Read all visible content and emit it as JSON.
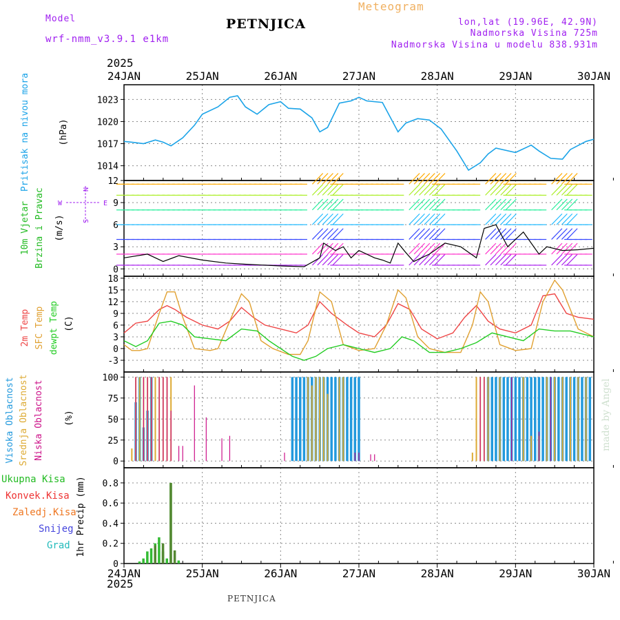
{
  "header": {
    "model_label": "Model",
    "model_name": "wrf-nmm_v3.9.1 e1km",
    "station": "PETNJICA",
    "product": "Meteogram",
    "lonlat": "lon,lat (19.96E, 42.9N)",
    "elevation": "Nadmorska Visina 725m",
    "model_elevation": "Nadmorska Visina u modelu 838.931m",
    "year_top": "2025",
    "year_bottom": "2025",
    "footer_station": "PETNJICA",
    "made_by": "made by Angel"
  },
  "colors": {
    "pressure": "#1aa3e8",
    "wind_label": "#22bb22",
    "temp2m": "#ee4444",
    "sfc": "#e0a030",
    "dewpt": "#22cc22",
    "cloud_high": "#2299dd",
    "cloud_mid": "#ddaa33",
    "cloud_low": "#cc1188",
    "purple": "#a020f0"
  },
  "chart_data": [
    {
      "type": "line",
      "panel": "pressure",
      "ylabel_1": "Pritisak na nivou mora",
      "ylabel_2": "(hPa)",
      "ylim": [
        1012,
        1025
      ],
      "yticks": [
        1014,
        1017,
        1020,
        1023
      ],
      "x_days": [
        "24JAN",
        "25JAN",
        "26JAN",
        "27JAN",
        "28JAN",
        "29JAN",
        "30JAN"
      ],
      "series": [
        {
          "x": [
            0,
            0.1,
            0.25,
            0.4,
            0.5,
            0.6,
            0.75,
            0.9,
            1.0,
            1.2,
            1.35,
            1.45,
            1.55,
            1.7,
            1.85,
            2.0,
            2.1,
            2.25,
            2.4,
            2.5,
            2.6,
            2.75,
            2.9,
            3.0,
            3.1,
            3.3,
            3.5,
            3.6,
            3.75,
            3.9,
            4.05,
            4.25,
            4.4,
            4.55,
            4.65,
            4.75,
            5.0,
            5.2,
            5.3,
            5.45,
            5.6,
            5.7,
            5.9,
            6.0
          ],
          "y": [
            1017.3,
            1017.2,
            1017.0,
            1017.5,
            1017.2,
            1016.7,
            1017.8,
            1019.5,
            1021.0,
            1022.0,
            1023.3,
            1023.5,
            1022.0,
            1021.0,
            1022.3,
            1022.7,
            1021.8,
            1021.7,
            1020.5,
            1018.6,
            1019.2,
            1022.5,
            1022.8,
            1023.3,
            1022.8,
            1022.6,
            1018.6,
            1019.8,
            1020.4,
            1020.2,
            1019.0,
            1016.0,
            1013.4,
            1014.4,
            1015.6,
            1016.4,
            1015.8,
            1016.8,
            1016.0,
            1015.0,
            1014.9,
            1016.2,
            1017.3,
            1017.6
          ]
        }
      ]
    },
    {
      "type": "line",
      "panel": "wind",
      "ylabel_1": "10m Vjetar",
      "ylabel_2": "Brzina i Pravac",
      "ylabel_3": "(m/s)",
      "compass": {
        "n": "N",
        "s": "S",
        "w": "W",
        "e": "E"
      },
      "ylim": [
        -1,
        12
      ],
      "yticks": [
        0,
        3,
        6,
        9,
        12
      ],
      "series": [
        {
          "name": "speed",
          "x": [
            0,
            0.3,
            0.5,
            0.7,
            1.0,
            1.3,
            1.6,
            2.0,
            2.3,
            2.5,
            2.55,
            2.7,
            2.8,
            2.9,
            3.0,
            3.2,
            3.3,
            3.4,
            3.5,
            3.6,
            3.7,
            3.9,
            4.1,
            4.3,
            4.5,
            4.6,
            4.75,
            4.9,
            5.1,
            5.3,
            5.4,
            5.6,
            5.8,
            6.0
          ],
          "y": [
            1.5,
            2.0,
            1.0,
            1.8,
            1.2,
            0.8,
            0.6,
            0.4,
            0.3,
            1.5,
            3.5,
            2.5,
            3.0,
            1.5,
            2.5,
            1.5,
            1.2,
            0.8,
            3.5,
            2.2,
            1.0,
            2.0,
            3.5,
            3.0,
            1.5,
            5.5,
            6.0,
            3.0,
            5.0,
            2.0,
            3.0,
            2.5,
            2.6,
            2.8
          ]
        }
      ]
    },
    {
      "type": "line",
      "panel": "temperature",
      "ylabel_1": "2m Temp",
      "ylabel_2": "SFC Temp",
      "ylabel_3": "dewpt Temp",
      "ylabel_4": "(C)",
      "ylim": [
        -6,
        18.5
      ],
      "yticks": [
        -3,
        0,
        3,
        6,
        9,
        12,
        15,
        18
      ],
      "series": [
        {
          "name": "2m",
          "x": [
            0,
            0.15,
            0.3,
            0.45,
            0.55,
            0.65,
            0.8,
            1.0,
            1.2,
            1.35,
            1.5,
            1.65,
            1.8,
            2.0,
            2.2,
            2.35,
            2.5,
            2.65,
            2.85,
            3.0,
            3.2,
            3.35,
            3.5,
            3.65,
            3.8,
            4.0,
            4.2,
            4.35,
            4.5,
            4.65,
            4.8,
            5.0,
            5.2,
            5.35,
            5.5,
            5.65,
            5.8,
            6.0
          ],
          "y": [
            4,
            6.5,
            7,
            10,
            11,
            10,
            8,
            6,
            5,
            7,
            10.5,
            8,
            6,
            5,
            4,
            6,
            12,
            9,
            6,
            4,
            3,
            6,
            11.5,
            10,
            5,
            2.5,
            4,
            8,
            11,
            7,
            5,
            4,
            6,
            13.5,
            14,
            9,
            8,
            7.5
          ]
        },
        {
          "name": "SFC",
          "x": [
            0,
            0.1,
            0.2,
            0.3,
            0.45,
            0.55,
            0.65,
            0.75,
            0.9,
            1.1,
            1.2,
            1.35,
            1.5,
            1.6,
            1.75,
            1.9,
            2.1,
            2.25,
            2.35,
            2.5,
            2.65,
            2.8,
            3.0,
            3.2,
            3.35,
            3.5,
            3.6,
            3.75,
            3.9,
            4.1,
            4.3,
            4.45,
            4.55,
            4.65,
            4.8,
            5.0,
            5.2,
            5.35,
            5.5,
            5.6,
            5.8,
            6.0
          ],
          "y": [
            1,
            -0.5,
            -0.5,
            0,
            9,
            14.5,
            14.5,
            8,
            0,
            -0.5,
            0,
            7,
            14,
            12,
            2,
            0,
            -1.5,
            -1.5,
            2,
            14.5,
            12,
            1,
            -0.5,
            0,
            6,
            15,
            13,
            3,
            0,
            -1,
            -1,
            6,
            14.5,
            12,
            1,
            -0.5,
            0,
            12,
            17.5,
            15,
            5,
            3
          ]
        },
        {
          "name": "dewpt",
          "x": [
            0,
            0.15,
            0.3,
            0.45,
            0.6,
            0.75,
            0.9,
            1.1,
            1.3,
            1.5,
            1.7,
            1.85,
            2.0,
            2.15,
            2.3,
            2.45,
            2.6,
            2.8,
            3.0,
            3.2,
            3.4,
            3.55,
            3.7,
            3.9,
            4.1,
            4.3,
            4.5,
            4.7,
            4.9,
            5.1,
            5.3,
            5.5,
            5.7,
            6.0
          ],
          "y": [
            2,
            0.5,
            2,
            6.5,
            7,
            6,
            3,
            2.5,
            2,
            5,
            4.5,
            2,
            0,
            -2,
            -3,
            -2,
            0,
            1,
            0,
            -1,
            0,
            3,
            2,
            -1,
            -1,
            0,
            1.5,
            4,
            3,
            2,
            5,
            4.5,
            4.5,
            3
          ]
        }
      ]
    },
    {
      "type": "bar",
      "panel": "clouds",
      "ylabel_1": "Visoka Oblacnost",
      "ylabel_2": "Srednja Oblacnost",
      "ylabel_3": "Niska Oblacnost",
      "ylabel_4": "(%)",
      "ylim": [
        -8,
        106
      ],
      "yticks": [
        0,
        25,
        50,
        75,
        100
      ],
      "series": [
        {
          "name": "high",
          "x": [
            0.15,
            0.2,
            0.25,
            0.3,
            0.35,
            2.15,
            2.2,
            2.25,
            2.3,
            2.35,
            2.4,
            2.45,
            2.5,
            2.55,
            2.6,
            2.65,
            2.7,
            2.75,
            2.8,
            2.85,
            2.9,
            2.95,
            3.0,
            4.65,
            4.7,
            4.75,
            4.8,
            4.85,
            4.9,
            4.95,
            5.0,
            5.05,
            5.1,
            5.15,
            5.2,
            5.25,
            5.3,
            5.35,
            5.4,
            5.45,
            5.5,
            5.55,
            5.6,
            5.65,
            5.7,
            5.75,
            5.8,
            5.85,
            5.9,
            5.95
          ],
          "y": [
            70,
            100,
            40,
            60,
            100,
            100,
            100,
            100,
            100,
            100,
            100,
            100,
            100,
            100,
            100,
            100,
            100,
            100,
            100,
            100,
            100,
            100,
            100,
            100,
            100,
            100,
            100,
            100,
            100,
            100,
            100,
            100,
            100,
            100,
            100,
            100,
            100,
            100,
            100,
            100,
            100,
            100,
            100,
            100,
            100,
            100,
            100,
            100,
            100,
            100
          ]
        },
        {
          "name": "mid",
          "x": [
            0.1,
            0.15,
            0.2,
            0.25,
            0.3,
            0.35,
            0.4,
            0.45,
            0.5,
            0.55,
            0.6,
            2.35,
            2.4,
            2.45,
            2.5,
            2.55,
            2.6,
            2.75,
            2.8,
            4.45,
            4.5,
            4.55,
            4.6,
            4.65,
            4.8,
            5.1,
            5.2,
            5.3,
            5.4,
            5.5,
            5.6,
            5.7,
            5.8,
            5.9
          ],
          "y": [
            15,
            100,
            100,
            100,
            100,
            100,
            100,
            100,
            100,
            100,
            100,
            100,
            90,
            100,
            100,
            100,
            80,
            100,
            100,
            10,
            100,
            100,
            100,
            100,
            100,
            100,
            30,
            30,
            100,
            100,
            100,
            100,
            100,
            100
          ]
        },
        {
          "name": "low",
          "x": [
            0.15,
            0.25,
            0.3,
            0.35,
            0.45,
            0.5,
            0.55,
            0.6,
            0.7,
            0.75,
            0.9,
            1.05,
            1.25,
            1.35,
            2.05,
            2.95,
            3.0,
            3.15,
            3.2,
            4.55,
            4.6,
            4.95,
            5.3,
            5.45
          ],
          "y": [
            100,
            100,
            100,
            100,
            100,
            100,
            100,
            60,
            18,
            18,
            90,
            52,
            27,
            30,
            10,
            10,
            10,
            8,
            8,
            100,
            100,
            100,
            35,
            100
          ]
        }
      ]
    },
    {
      "type": "bar",
      "panel": "precip",
      "ylabel_1": "1hr Precip (mm)",
      "ylim": [
        0,
        0.95
      ],
      "yticks": [
        0,
        0.2,
        0.4,
        0.6,
        0.8
      ],
      "legend": [
        "Ukupna Kisa",
        "Konvek.Kisa",
        "Zaledj.Kisa",
        "Snijeg",
        "Grad"
      ],
      "series": [
        {
          "name": "Ukupna Kisa",
          "x": [
            0.2,
            0.25,
            0.3,
            0.35,
            0.4,
            0.45,
            0.5,
            0.55,
            0.6,
            0.7
          ],
          "y": [
            0.02,
            0.05,
            0.12,
            0.15,
            0.2,
            0.26,
            0.12,
            0.05,
            0.8,
            0.03
          ]
        },
        {
          "name": "Konvek.Kisa",
          "x": [
            0.4,
            0.5,
            0.6,
            0.65
          ],
          "y": [
            0.18,
            0.2,
            0.8,
            0.13
          ]
        }
      ]
    }
  ]
}
